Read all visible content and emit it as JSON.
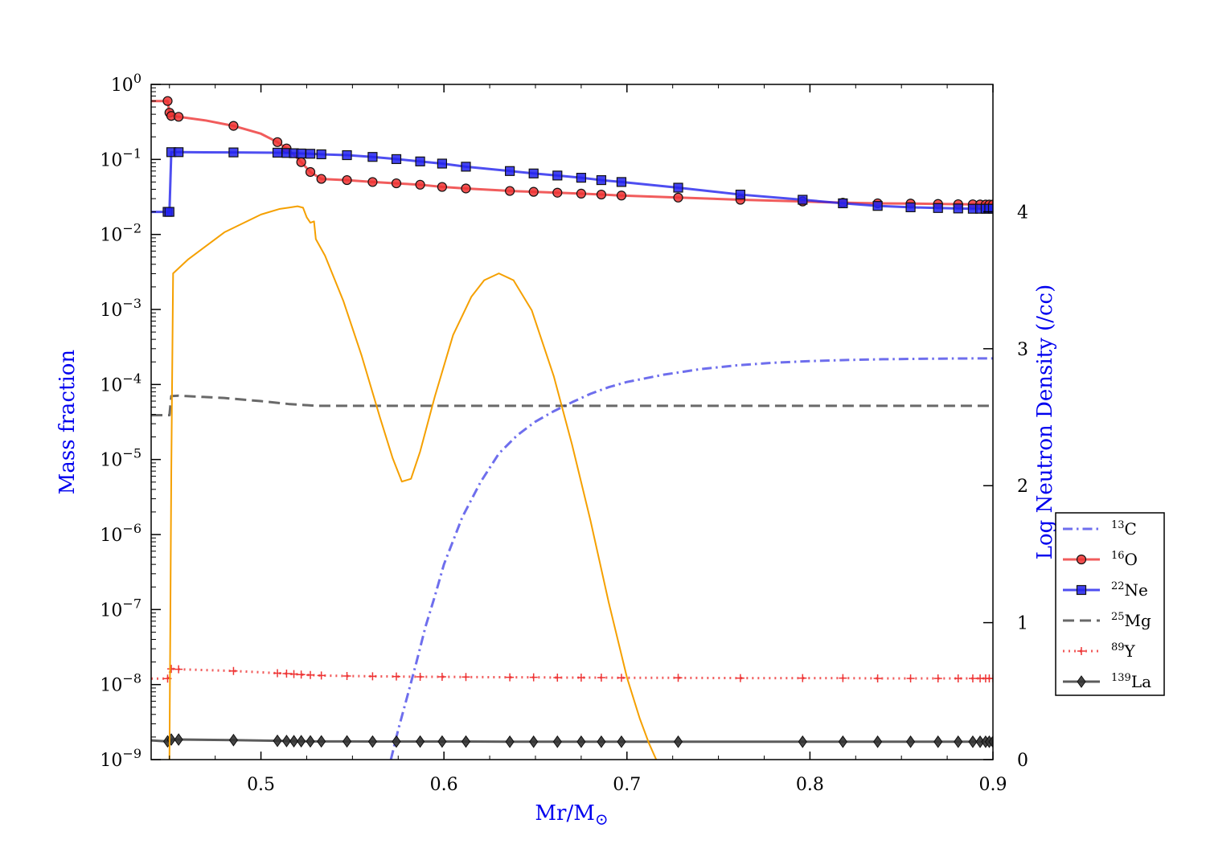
{
  "chart_data": {
    "type": "line",
    "xlabel": "Mr/M",
    "xlabel_symbol": "⊙",
    "ylabel_left": "Mass fraction",
    "ylabel_right": "Log Neutron Density (/cc)",
    "xlim": [
      0.44,
      0.9
    ],
    "ylim_left": [
      1e-09,
      1
    ],
    "ylim_right": [
      0,
      4.93
    ],
    "left_scale": "log",
    "right_scale": "linear",
    "x_ticks": [
      0.5,
      0.6,
      0.7,
      0.8,
      0.9
    ],
    "x_tick_labels": [
      "0.5",
      "0.6",
      "0.7",
      "0.8",
      "0.9"
    ],
    "left_ticks": [
      {
        "base": "10",
        "exp": "0",
        "value": 1
      },
      {
        "base": "10",
        "exp": "−1",
        "value": 0.1
      },
      {
        "base": "10",
        "exp": "−2",
        "value": 0.01
      },
      {
        "base": "10",
        "exp": "−3",
        "value": 0.001
      },
      {
        "base": "10",
        "exp": "−4",
        "value": 0.0001
      },
      {
        "base": "10",
        "exp": "−5",
        "value": 1e-05
      },
      {
        "base": "10",
        "exp": "−6",
        "value": 1e-06
      },
      {
        "base": "10",
        "exp": "−7",
        "value": 1e-07
      },
      {
        "base": "10",
        "exp": "−8",
        "value": 1e-08
      },
      {
        "base": "10",
        "exp": "−9",
        "value": 1e-09
      }
    ],
    "right_ticks": [
      0,
      1,
      2,
      3,
      4
    ],
    "right_tick_labels": [
      "0",
      "1",
      "2",
      "3",
      "4"
    ],
    "legend_position": "right, outside axes",
    "series": [
      {
        "name_sup": "13",
        "name": "C",
        "color": "#4a4ae8",
        "style": "dashdot",
        "marker": "none",
        "axis": "left",
        "x": [
          0.571,
          0.575,
          0.58,
          0.585,
          0.59,
          0.595,
          0.6,
          0.61,
          0.62,
          0.63,
          0.64,
          0.65,
          0.66,
          0.67,
          0.68,
          0.69,
          0.7,
          0.72,
          0.74,
          0.76,
          0.78,
          0.8,
          0.82,
          0.84,
          0.86,
          0.88,
          0.9
        ],
        "y": [
          1e-09,
          2.5e-09,
          7e-09,
          2e-08,
          6e-08,
          1.5e-07,
          4e-07,
          1.7e-06,
          5e-06,
          1.2e-05,
          2.1e-05,
          3.2e-05,
          4.4e-05,
          5.8e-05,
          7.5e-05,
          9.2e-05,
          0.000108,
          0.000135,
          0.00016,
          0.00018,
          0.000195,
          0.000205,
          0.000212,
          0.000217,
          0.00022,
          0.000222,
          0.000223
        ]
      },
      {
        "name_sup": "16",
        "name": "O",
        "color": "#ee3333",
        "style": "solid",
        "marker": "circle",
        "axis": "left",
        "x": [
          0.44,
          0.449,
          0.45,
          0.451,
          0.455,
          0.47,
          0.485,
          0.5,
          0.509,
          0.514,
          0.518,
          0.522,
          0.527,
          0.533,
          0.547,
          0.561,
          0.574,
          0.587,
          0.599,
          0.612,
          0.636,
          0.649,
          0.662,
          0.675,
          0.686,
          0.697,
          0.728,
          0.762,
          0.796,
          0.818,
          0.837,
          0.855,
          0.87,
          0.881,
          0.889,
          0.893,
          0.896,
          0.898,
          0.9
        ],
        "y": [
          0.6,
          0.6,
          0.42,
          0.38,
          0.37,
          0.33,
          0.28,
          0.22,
          0.17,
          0.14,
          0.115,
          0.092,
          0.068,
          0.055,
          0.053,
          0.05,
          0.048,
          0.046,
          0.043,
          0.041,
          0.038,
          0.037,
          0.036,
          0.035,
          0.034,
          0.033,
          0.031,
          0.029,
          0.0275,
          0.0265,
          0.026,
          0.0258,
          0.0255,
          0.0253,
          0.0252,
          0.0251,
          0.025,
          0.025,
          0.025
        ],
        "marker_x": [
          0.449,
          0.45,
          0.451,
          0.455,
          0.485,
          0.509,
          0.514,
          0.522,
          0.527,
          0.533,
          0.547,
          0.561,
          0.574,
          0.587,
          0.599,
          0.612,
          0.636,
          0.649,
          0.662,
          0.675,
          0.686,
          0.697,
          0.728,
          0.762,
          0.796,
          0.818,
          0.837,
          0.855,
          0.87,
          0.881,
          0.889,
          0.893,
          0.896,
          0.898,
          0.9
        ]
      },
      {
        "name_sup": "22",
        "name": "Ne",
        "color": "#2222ee",
        "style": "solid",
        "marker": "square",
        "axis": "left",
        "x": [
          0.44,
          0.449,
          0.45,
          0.451,
          0.455,
          0.485,
          0.509,
          0.514,
          0.518,
          0.522,
          0.527,
          0.533,
          0.547,
          0.561,
          0.574,
          0.587,
          0.599,
          0.612,
          0.636,
          0.649,
          0.662,
          0.675,
          0.686,
          0.697,
          0.728,
          0.762,
          0.796,
          0.818,
          0.837,
          0.855,
          0.87,
          0.881,
          0.889,
          0.893,
          0.896,
          0.898,
          0.9
        ],
        "y": [
          0.02,
          0.02,
          0.02,
          0.125,
          0.125,
          0.124,
          0.123,
          0.122,
          0.121,
          0.12,
          0.119,
          0.117,
          0.114,
          0.108,
          0.101,
          0.094,
          0.088,
          0.08,
          0.07,
          0.065,
          0.061,
          0.057,
          0.053,
          0.05,
          0.042,
          0.034,
          0.029,
          0.026,
          0.024,
          0.023,
          0.0225,
          0.0222,
          0.022,
          0.022,
          0.022,
          0.022,
          0.022
        ],
        "marker_x": [
          0.449,
          0.45,
          0.451,
          0.455,
          0.485,
          0.509,
          0.514,
          0.518,
          0.522,
          0.527,
          0.533,
          0.547,
          0.561,
          0.574,
          0.587,
          0.599,
          0.612,
          0.636,
          0.649,
          0.662,
          0.675,
          0.686,
          0.697,
          0.728,
          0.762,
          0.796,
          0.818,
          0.837,
          0.855,
          0.87,
          0.881,
          0.889,
          0.893,
          0.896,
          0.898,
          0.9
        ]
      },
      {
        "name_sup": "25",
        "name": "Mg",
        "color": "#444444",
        "style": "dashed",
        "marker": "none",
        "axis": "left",
        "x": [
          0.44,
          0.45,
          0.451,
          0.455,
          0.48,
          0.5,
          0.515,
          0.53,
          0.55,
          0.7,
          0.9
        ],
        "y": [
          3.9e-05,
          3.9e-05,
          7e-05,
          7.1e-05,
          6.6e-05,
          6e-05,
          5.5e-05,
          5.2e-05,
          5.2e-05,
          5.2e-05,
          5.2e-05
        ]
      },
      {
        "name_sup": "89",
        "name": "Y",
        "color": "#ee3333",
        "style": "dotted",
        "marker": "plus",
        "axis": "left",
        "x": [
          0.44,
          0.449,
          0.451,
          0.455,
          0.485,
          0.509,
          0.514,
          0.518,
          0.522,
          0.527,
          0.533,
          0.547,
          0.561,
          0.574,
          0.587,
          0.599,
          0.612,
          0.636,
          0.649,
          0.662,
          0.675,
          0.686,
          0.697,
          0.728,
          0.762,
          0.796,
          0.818,
          0.837,
          0.855,
          0.87,
          0.881,
          0.889,
          0.893,
          0.896,
          0.898,
          0.9
        ],
        "y": [
          1.2e-08,
          1.2e-08,
          1.62e-08,
          1.6e-08,
          1.52e-08,
          1.42e-08,
          1.4e-08,
          1.38e-08,
          1.36e-08,
          1.34e-08,
          1.32e-08,
          1.3e-08,
          1.29e-08,
          1.28e-08,
          1.27e-08,
          1.27e-08,
          1.26e-08,
          1.25e-08,
          1.25e-08,
          1.24e-08,
          1.24e-08,
          1.24e-08,
          1.23e-08,
          1.23e-08,
          1.22e-08,
          1.22e-08,
          1.22e-08,
          1.21e-08,
          1.21e-08,
          1.21e-08,
          1.21e-08,
          1.21e-08,
          1.21e-08,
          1.21e-08,
          1.21e-08,
          1.21e-08
        ],
        "marker_x": [
          0.449,
          0.451,
          0.455,
          0.485,
          0.509,
          0.514,
          0.518,
          0.522,
          0.527,
          0.533,
          0.547,
          0.561,
          0.574,
          0.587,
          0.599,
          0.612,
          0.636,
          0.649,
          0.662,
          0.675,
          0.686,
          0.697,
          0.728,
          0.762,
          0.796,
          0.818,
          0.837,
          0.855,
          0.87,
          0.881,
          0.889,
          0.893,
          0.896,
          0.898,
          0.9
        ]
      },
      {
        "name_sup": "139",
        "name": "La",
        "color": "#333333",
        "style": "solid",
        "marker": "diamond",
        "axis": "left",
        "x": [
          0.44,
          0.449,
          0.451,
          0.455,
          0.485,
          0.509,
          0.514,
          0.518,
          0.522,
          0.527,
          0.533,
          0.547,
          0.561,
          0.574,
          0.587,
          0.599,
          0.612,
          0.636,
          0.649,
          0.662,
          0.675,
          0.686,
          0.697,
          0.728,
          0.796,
          0.818,
          0.837,
          0.855,
          0.87,
          0.881,
          0.889,
          0.893,
          0.896,
          0.898,
          0.9
        ],
        "y": [
          1.8e-09,
          1.75e-09,
          1.85e-09,
          1.85e-09,
          1.82e-09,
          1.78e-09,
          1.77e-09,
          1.76e-09,
          1.76e-09,
          1.75e-09,
          1.75e-09,
          1.75e-09,
          1.74e-09,
          1.74e-09,
          1.74e-09,
          1.74e-09,
          1.74e-09,
          1.73e-09,
          1.73e-09,
          1.73e-09,
          1.73e-09,
          1.73e-09,
          1.73e-09,
          1.73e-09,
          1.73e-09,
          1.73e-09,
          1.73e-09,
          1.73e-09,
          1.73e-09,
          1.73e-09,
          1.73e-09,
          1.73e-09,
          1.73e-09,
          1.73e-09,
          1.73e-09
        ],
        "marker_x": [
          0.449,
          0.451,
          0.455,
          0.485,
          0.509,
          0.514,
          0.518,
          0.522,
          0.527,
          0.533,
          0.547,
          0.561,
          0.574,
          0.587,
          0.599,
          0.612,
          0.636,
          0.649,
          0.662,
          0.675,
          0.686,
          0.697,
          0.728,
          0.796,
          0.818,
          0.837,
          0.855,
          0.87,
          0.881,
          0.889,
          0.893,
          0.896,
          0.898,
          0.9
        ]
      },
      {
        "name": "",
        "color": "#f5a000",
        "style": "solid",
        "marker": "none",
        "axis": "right",
        "legend": false,
        "x": [
          0.45,
          0.451,
          0.452,
          0.46,
          0.48,
          0.5,
          0.51,
          0.515,
          0.52,
          0.523,
          0.525,
          0.527,
          0.529,
          0.53,
          0.535,
          0.545,
          0.555,
          0.565,
          0.572,
          0.577,
          0.582,
          0.587,
          0.595,
          0.605,
          0.615,
          0.622,
          0.63,
          0.638,
          0.648,
          0.66,
          0.67,
          0.68,
          0.69,
          0.7,
          0.707,
          0.712,
          0.716
        ],
        "y": [
          0,
          2.1,
          3.55,
          3.65,
          3.85,
          3.98,
          4.02,
          4.03,
          4.04,
          4.03,
          3.96,
          3.92,
          3.93,
          3.8,
          3.68,
          3.35,
          2.95,
          2.5,
          2.2,
          2.03,
          2.05,
          2.25,
          2.65,
          3.1,
          3.38,
          3.5,
          3.55,
          3.5,
          3.28,
          2.8,
          2.3,
          1.75,
          1.15,
          0.6,
          0.3,
          0.12,
          0
        ]
      }
    ]
  }
}
